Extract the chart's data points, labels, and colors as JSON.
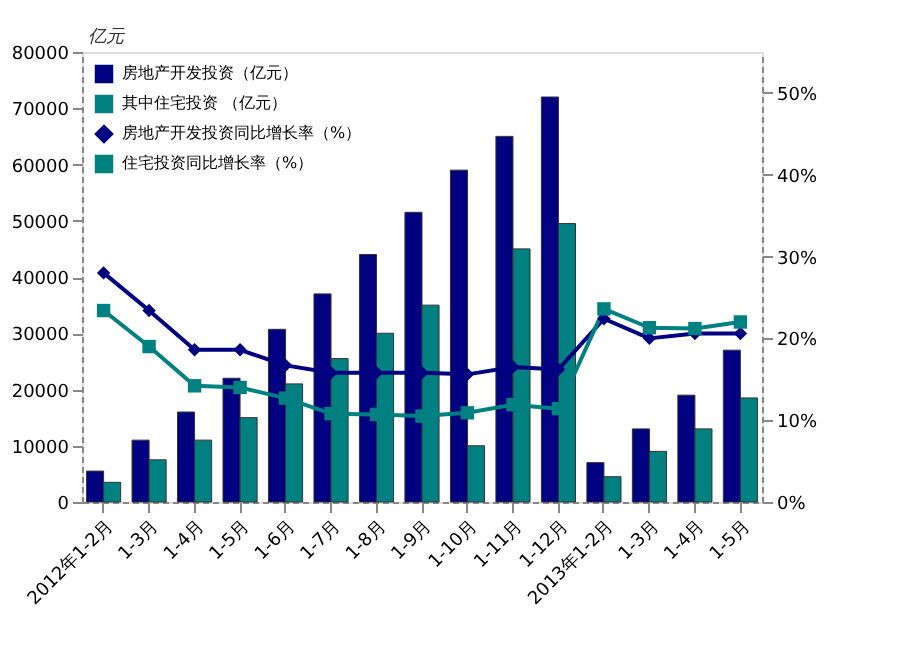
{
  "chart_data": {
    "type": "bar",
    "annotations": [
      "亿元"
    ],
    "categories": [
      "2012年1-2月",
      "1-3月",
      "1-4月",
      "1-5月",
      "1-6月",
      "1-7月",
      "1-8月",
      "1-9月",
      "1-10月",
      "1-11月",
      "1-12月",
      "2013年1-2月",
      "1-3月",
      "1-4月",
      "1-5月"
    ],
    "series": [
      {
        "name": "房地产开发投资（亿元）",
        "color": "#000080",
        "values": [
          5500,
          11000,
          16000,
          22000,
          30700,
          37000,
          44000,
          51500,
          59000,
          65000,
          72000,
          7000,
          13000,
          19000,
          27000
        ]
      },
      {
        "name": "其中住宅投资 （亿元）",
        "color": "#008080",
        "values": [
          3500,
          7500,
          11000,
          15000,
          21000,
          25500,
          30000,
          35000,
          10000,
          45000,
          49500,
          4500,
          9000,
          13000,
          18500
        ]
      },
      {
        "name": "房地产开发投资同比增长率（%）",
        "color": "#000080",
        "type": "line",
        "axis": "y2",
        "marker": "diamond",
        "values": [
          28.0,
          23.4,
          18.6,
          18.6,
          16.7,
          15.8,
          15.8,
          15.8,
          15.6,
          16.5,
          16.2,
          22.4,
          20.0,
          20.6,
          20.6
        ]
      },
      {
        "name": "住宅投资同比增长率（%）",
        "color": "#008080",
        "type": "line",
        "axis": "y2",
        "marker": "square",
        "values": [
          23.4,
          19.0,
          14.2,
          14.0,
          12.7,
          10.8,
          10.7,
          10.5,
          10.9,
          11.9,
          11.4,
          23.6,
          21.3,
          21.2,
          22.0
        ]
      }
    ],
    "ylim": [
      0,
      80000
    ],
    "yticks": [
      0,
      10000,
      20000,
      30000,
      40000,
      50000,
      60000,
      70000,
      80000
    ],
    "y2lim": [
      0,
      55
    ],
    "y2ticks": [
      {
        "value": 0,
        "label": "0%"
      },
      {
        "value": 10,
        "label": "10%"
      },
      {
        "value": 20,
        "label": "20%"
      },
      {
        "value": 30,
        "label": "30%"
      },
      {
        "value": 40,
        "label": "40%"
      },
      {
        "value": 50,
        "label": "50%"
      }
    ],
    "grid": false,
    "legend": "top left"
  }
}
